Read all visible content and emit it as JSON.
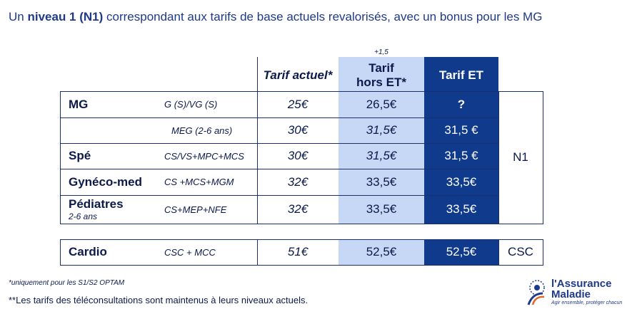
{
  "title": {
    "prefix": "Un ",
    "bold": "niveau 1 (N1)",
    "suffix": " correspondant aux tarifs de base actuels revalorisés, avec un bonus pour les MG"
  },
  "header": {
    "plus": "+1,5",
    "tarif_actuel": "Tarif actuel*",
    "tarif_hors_line1": "Tarif",
    "tarif_hors_line2": "hors ET*",
    "tarif_et": "Tarif ET"
  },
  "rows": [
    {
      "specialty": "MG",
      "sub": "",
      "code": "G (S)/VG (S)",
      "actuel": "25€",
      "hors": "26,5€",
      "et": "?"
    },
    {
      "specialty": "",
      "sub": "",
      "code": "MEG (2-6 ans)",
      "actuel": "30€",
      "hors": "31,5€",
      "et": "31,5 €"
    },
    {
      "specialty": "Spé",
      "sub": "",
      "code": "CS/VS+MPC+MCS",
      "actuel": "30€",
      "hors": "31,5€",
      "et": "31,5 €"
    },
    {
      "specialty": "Gynéco-med",
      "sub": "",
      "code": "CS +MCS+MGM",
      "actuel": "32€",
      "hors": "33,5€",
      "et": "33,5€"
    },
    {
      "specialty": "Pédiatres",
      "sub": "2-6 ans",
      "code": "CS+MEP+NFE",
      "actuel": "32€",
      "hors": "33,5€",
      "et": "33,5€"
    }
  ],
  "niveau_n1": "N1",
  "cardio": {
    "specialty": "Cardio",
    "code": "CSC + MCC",
    "actuel": "51€",
    "hors": "52,5€",
    "et": "52,5€",
    "niveau": "CSC"
  },
  "footnotes": {
    "note1": "*uniquement pour les S1/S2 OPTAM",
    "note2": "**Les tarifs des téléconsultations sont maintenus à leurs niveaux actuels."
  },
  "logo": {
    "line1": "l'Assurance",
    "line2": "Maladie",
    "tagline": "Agir ensemble, protéger chacun"
  },
  "colors": {
    "dark_blue": "#103a8c",
    "light_blue": "#c6d8f6",
    "text": "#0b1a4a"
  }
}
